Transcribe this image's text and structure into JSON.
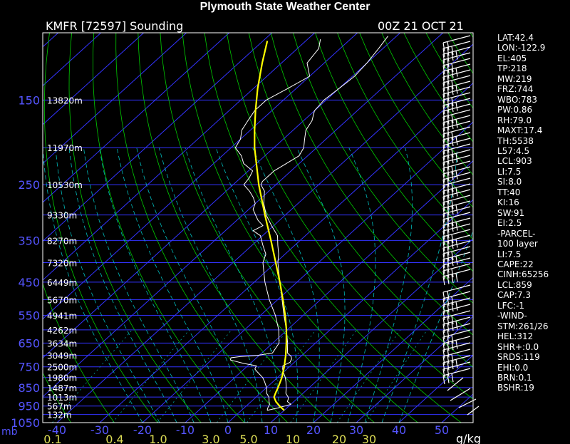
{
  "header": {
    "title": "Plymouth State Weather Center",
    "station": "KMFR [72597] Sounding",
    "time": "00Z 21 OCT 21"
  },
  "indices": [
    "LAT:42.4",
    "LON:-122.9",
    "EL:405",
    "TP:218",
    "MW:219",
    "FRZ:744",
    "WBO:783",
    "PW:0.86",
    "RH:79.0",
    "MAXT:17.4",
    "TH:5538",
    "L57:4.5",
    "LCL:903",
    "LI:7.5",
    "SI:8.0",
    "TT:40",
    "KI:16",
    "SW:91",
    "EI:2.5",
    "-PARCEL-",
    "100 layer",
    "LI:7.5",
    "CAPE:22",
    "CINH:65256",
    "LCL:859",
    "CAP:7.3",
    "LFC:-1",
    "-WIND-",
    "STM:261/26",
    "HEL:312",
    "SHR+:0.0",
    "SRDS:119",
    "EHI:0.0",
    "BRN:0.1",
    "BSHR:19"
  ],
  "colors": {
    "background": "#000000",
    "isobars": "#3333ff",
    "isotherms": "#3333ff",
    "dry_adiabats": "#00cc00",
    "moist_adiabats": "#00bbbb",
    "mixing_ratio": "#00bbbb",
    "sounding": "#ffffff",
    "parcel": "#ffff00",
    "axis_text": "#5555ff"
  },
  "chart_data": {
    "type": "line",
    "subtype": "skew-t log-p sounding",
    "title": "Plymouth State Weather Center",
    "xlabel": "",
    "ylabel": "mb",
    "pressure_range_mb": [
      100,
      1050
    ],
    "temperature_range_c": [
      -40,
      50
    ],
    "y_scale": "log",
    "grid": true,
    "pressure_ticks": [
      150,
      250,
      350,
      450,
      550,
      650,
      750,
      850,
      950,
      1050
    ],
    "pressure_unit": "mb",
    "temperature_ticks": [
      -40,
      -30,
      -20,
      -10,
      0,
      10,
      20,
      30,
      40,
      50
    ],
    "mixing_ratio_labels": [
      "0.1",
      "0.4",
      "1.0",
      "3.0",
      "5.0",
      "10",
      "20",
      "30"
    ],
    "mixing_ratio_unit": "g/kg",
    "height_labels": [
      {
        "p": 150,
        "label": "13820m"
      },
      {
        "p": 200,
        "label": "11970m"
      },
      {
        "p": 250,
        "label": "10530m"
      },
      {
        "p": 300,
        "label": "9330m"
      },
      {
        "p": 350,
        "label": "8270m"
      },
      {
        "p": 400,
        "label": "7320m"
      },
      {
        "p": 450,
        "label": "6449m"
      },
      {
        "p": 500,
        "label": "5670m"
      },
      {
        "p": 550,
        "label": "4941m"
      },
      {
        "p": 600,
        "label": "4262m"
      },
      {
        "p": 650,
        "label": "3634m"
      },
      {
        "p": 700,
        "label": "3049m"
      },
      {
        "p": 750,
        "label": "2500m"
      },
      {
        "p": 800,
        "label": "1980m"
      },
      {
        "p": 850,
        "label": "1487m"
      },
      {
        "p": 900,
        "label": "1013m"
      },
      {
        "p": 950,
        "label": "567m"
      },
      {
        "p": 1000,
        "label": "132m"
      }
    ],
    "series": [
      {
        "key": "temperature",
        "points": [
          [
            975,
            6.0
          ],
          [
            960,
            8.0
          ],
          [
            940,
            10.0
          ],
          [
            925,
            8.5
          ],
          [
            910,
            8.0
          ],
          [
            900,
            7.5
          ],
          [
            880,
            6.0
          ],
          [
            850,
            4.6
          ],
          [
            820,
            3.0
          ],
          [
            800,
            1.8
          ],
          [
            775,
            0.0
          ],
          [
            760,
            -1.0
          ],
          [
            745,
            -1.8
          ],
          [
            730,
            -1.0
          ],
          [
            715,
            -1.5
          ],
          [
            705,
            -2.2
          ],
          [
            690,
            -4.0
          ],
          [
            650,
            -6.5
          ],
          [
            600,
            -10.2
          ],
          [
            550,
            -14.5
          ],
          [
            500,
            -19.0
          ],
          [
            450,
            -24.0
          ],
          [
            400,
            -29.5
          ],
          [
            380,
            -31.5
          ],
          [
            360,
            -34.0
          ],
          [
            340,
            -36.5
          ],
          [
            320,
            -40.5
          ],
          [
            300,
            -44.5
          ],
          [
            280,
            -48.0
          ],
          [
            260,
            -51.0
          ],
          [
            250,
            -53.5
          ],
          [
            245,
            -54.0
          ],
          [
            230,
            -54.0
          ],
          [
            220,
            -53.0
          ],
          [
            210,
            -52.0
          ],
          [
            200,
            -53.0
          ],
          [
            190,
            -55.0
          ],
          [
            180,
            -57.0
          ],
          [
            170,
            -58.0
          ],
          [
            160,
            -60.0
          ],
          [
            150,
            -60.5
          ],
          [
            140,
            -60.0
          ],
          [
            130,
            -59.5
          ],
          [
            120,
            -60.0
          ],
          [
            110,
            -61.0
          ],
          [
            102,
            -62.0
          ]
        ]
      },
      {
        "key": "dewpoint",
        "points": [
          [
            975,
            6.0
          ],
          [
            960,
            5.5
          ],
          [
            940,
            5.0
          ],
          [
            925,
            4.2
          ],
          [
            910,
            3.5
          ],
          [
            900,
            3.0
          ],
          [
            880,
            1.5
          ],
          [
            850,
            0.0
          ],
          [
            820,
            -2.0
          ],
          [
            800,
            -3.5
          ],
          [
            775,
            -6.0
          ],
          [
            760,
            -7.5
          ],
          [
            745,
            -8.0
          ],
          [
            735,
            -11.5
          ],
          [
            720,
            -15.5
          ],
          [
            710,
            -16.0
          ],
          [
            705,
            -14.0
          ],
          [
            700,
            -10.5
          ],
          [
            690,
            -7.5
          ],
          [
            650,
            -8.5
          ],
          [
            600,
            -12.0
          ],
          [
            550,
            -16.5
          ],
          [
            500,
            -22.0
          ],
          [
            450,
            -27.5
          ],
          [
            400,
            -33.0
          ],
          [
            380,
            -34.5
          ],
          [
            360,
            -37.5
          ],
          [
            340,
            -40.5
          ],
          [
            330,
            -43.5
          ],
          [
            320,
            -42.5
          ],
          [
            310,
            -45.0
          ],
          [
            300,
            -47.0
          ],
          [
            290,
            -49.0
          ],
          [
            280,
            -50.0
          ],
          [
            270,
            -52.0
          ],
          [
            260,
            -54.5
          ],
          [
            250,
            -57.5
          ],
          [
            240,
            -58.0
          ],
          [
            230,
            -59.0
          ],
          [
            220,
            -63.0
          ],
          [
            210,
            -65.5
          ],
          [
            200,
            -69.0
          ],
          [
            190,
            -70.0
          ],
          [
            180,
            -72.0
          ],
          [
            170,
            -73.0
          ],
          [
            160,
            -74.0
          ],
          [
            150,
            -74.0
          ],
          [
            140,
            -72.0
          ],
          [
            130,
            -70.0
          ],
          [
            120,
            -74.0
          ],
          [
            110,
            -75.0
          ],
          [
            104,
            -77.0
          ]
        ]
      },
      {
        "key": "parcel",
        "points": [
          [
            975,
            10.0
          ],
          [
            950,
            7.8
          ],
          [
            925,
            5.8
          ],
          [
            900,
            4.2
          ],
          [
            875,
            3.4
          ],
          [
            850,
            2.7
          ],
          [
            800,
            1.0
          ],
          [
            750,
            -1.2
          ],
          [
            700,
            -3.8
          ],
          [
            650,
            -6.8
          ],
          [
            600,
            -10.2
          ],
          [
            550,
            -14.2
          ],
          [
            500,
            -18.8
          ],
          [
            450,
            -24.0
          ],
          [
            400,
            -30.0
          ],
          [
            350,
            -36.8
          ],
          [
            300,
            -44.8
          ],
          [
            250,
            -54.0
          ],
          [
            200,
            -64.5
          ],
          [
            180,
            -69.0
          ],
          [
            160,
            -73.8
          ],
          [
            140,
            -79.0
          ],
          [
            120,
            -84.5
          ],
          [
            105,
            -89.0
          ]
        ]
      }
    ]
  }
}
